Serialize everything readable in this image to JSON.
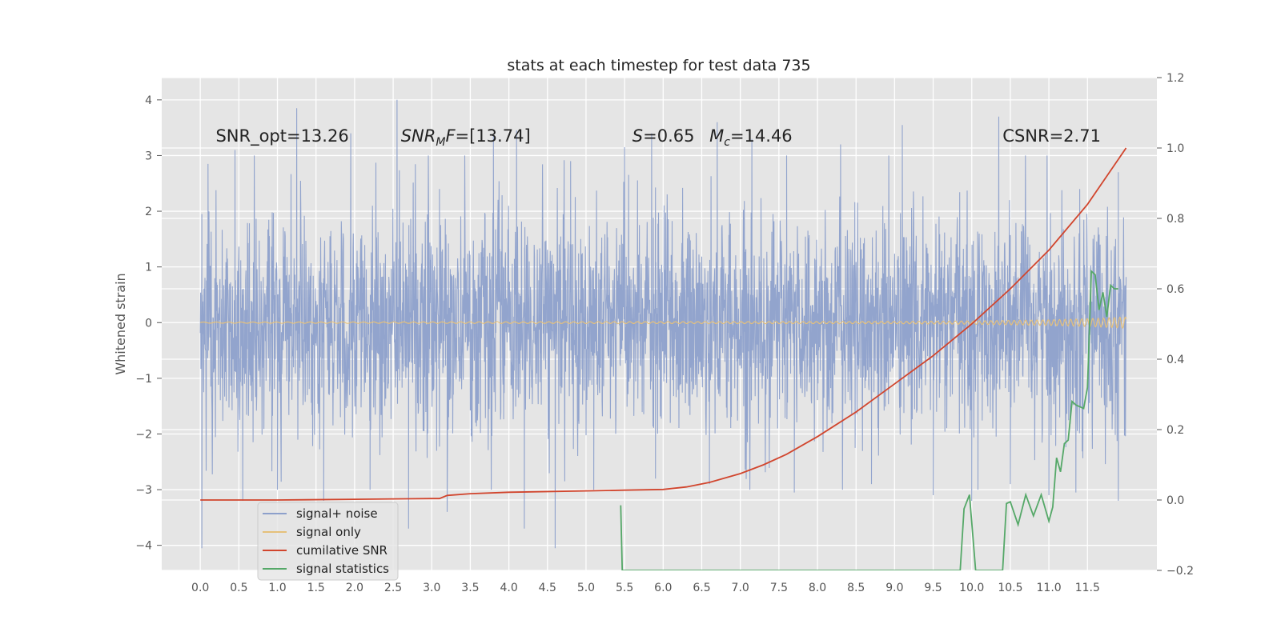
{
  "chart_data": {
    "type": "line",
    "title": "stats at each timestep for test data 735",
    "ylabel": "Whitened strain",
    "xlabel": "",
    "xlim": [
      -0.5,
      12.4
    ],
    "ylim": [
      -4.45,
      4.4
    ],
    "y2lim": [
      -0.2,
      1.2
    ],
    "x_ticks": [
      0.0,
      0.5,
      1.0,
      1.5,
      2.0,
      2.5,
      3.0,
      3.5,
      4.0,
      4.5,
      5.0,
      5.5,
      6.0,
      6.5,
      7.0,
      7.5,
      8.0,
      8.5,
      9.0,
      9.5,
      10.0,
      10.5,
      11.0,
      11.5
    ],
    "x_tick_labels": [
      "0.0",
      "0.5",
      "1.0",
      "1.5",
      "2.0",
      "2.5",
      "3.0",
      "3.5",
      "4.0",
      "4.5",
      "5.0",
      "5.5",
      "6.0",
      "6.5",
      "7.0",
      "7.5",
      "8.0",
      "8.5",
      "9.0",
      "9.5",
      "10.0",
      "10.5",
      "11.0",
      "11.5"
    ],
    "y_ticks": [
      -4,
      -3,
      -2,
      -1,
      0,
      1,
      2,
      3,
      4
    ],
    "y_tick_labels": [
      "−4",
      "−3",
      "−2",
      "−1",
      "0",
      "1",
      "2",
      "3",
      "4"
    ],
    "y2_ticks": [
      -0.2,
      0.0,
      0.2,
      0.4,
      0.6,
      0.8,
      1.0,
      1.2
    ],
    "y2_tick_labels": [
      "−0.2",
      "0.0",
      "0.2",
      "0.4",
      "0.6",
      "0.8",
      "1.0",
      "1.2"
    ],
    "grid": true,
    "legend_position": "bottom-left",
    "annotations": [
      {
        "text": "SNR_opt=13.26",
        "x": 0.2,
        "y": 3.25,
        "style": "plain"
      },
      {
        "text": "SNR_MF=[13.74]",
        "main": "SNR",
        "sub": "M",
        "after": "F=[13.74]",
        "x": 2.6,
        "y": 3.25,
        "style": "math"
      },
      {
        "text": "S=0.65",
        "main": "S",
        "after": "=0.65",
        "x": 5.6,
        "y": 3.25,
        "style": "math"
      },
      {
        "text": "M_c=14.46",
        "main": "M",
        "sub": "c",
        "after": "=14.46",
        "x": 6.6,
        "y": 3.25,
        "style": "math"
      },
      {
        "text": "CSNR=2.71",
        "x": 10.4,
        "y": 3.25,
        "style": "plain"
      }
    ],
    "series": [
      {
        "name": "signal+ noise",
        "axis": "left",
        "color": "#8da0cb",
        "description": "white noise, std ~1, plotted over x 0.0-12.0",
        "x_range": [
          0.0,
          12.0
        ],
        "std": 1.0,
        "peaks_positive": [
          [
            0.02,
            1.95
          ],
          [
            0.1,
            2.85
          ],
          [
            0.45,
            3.1
          ],
          [
            1.25,
            3.85
          ],
          [
            1.95,
            3.4
          ],
          [
            2.55,
            4.0
          ],
          [
            3.1,
            2.4
          ],
          [
            3.8,
            3.35
          ],
          [
            4.1,
            3.45
          ],
          [
            4.8,
            2.9
          ],
          [
            5.5,
            3.15
          ],
          [
            5.85,
            3.4
          ],
          [
            6.7,
            3.6
          ],
          [
            7.15,
            3.3
          ],
          [
            7.6,
            3.0
          ],
          [
            8.3,
            3.2
          ],
          [
            9.1,
            3.55
          ],
          [
            10.35,
            3.7
          ],
          [
            11.4,
            2.4
          ],
          [
            11.9,
            2.7
          ]
        ],
        "peaks_negative": [
          [
            0.02,
            -4.05
          ],
          [
            0.55,
            -3.2
          ],
          [
            1.0,
            -3.0
          ],
          [
            1.6,
            -3.2
          ],
          [
            2.2,
            -3.0
          ],
          [
            2.7,
            -3.7
          ],
          [
            3.2,
            -3.4
          ],
          [
            4.2,
            -3.7
          ],
          [
            4.6,
            -4.05
          ],
          [
            5.1,
            -3.0
          ],
          [
            5.9,
            -2.8
          ],
          [
            6.6,
            -2.9
          ],
          [
            7.7,
            -3.05
          ],
          [
            8.7,
            -2.9
          ],
          [
            9.5,
            -3.1
          ],
          [
            10.0,
            -3.2
          ],
          [
            10.5,
            -2.9
          ],
          [
            11.0,
            -3.1
          ],
          [
            11.35,
            -3.05
          ],
          [
            11.9,
            -3.2
          ]
        ]
      },
      {
        "name": "signal only",
        "axis": "left",
        "color": "#e5c07b",
        "description": "chirp near zero, amplitude grows to ~0.1 by x=12",
        "x": [
          0,
          9.0,
          10.0,
          11.0,
          11.5,
          12.0
        ],
        "amplitude": [
          0.01,
          0.02,
          0.03,
          0.05,
          0.07,
          0.1
        ]
      },
      {
        "name": "cumilative SNR",
        "axis": "right",
        "color": "#d1452d",
        "x": [
          0.0,
          1.0,
          2.0,
          3.0,
          3.1,
          3.2,
          3.5,
          4.0,
          5.0,
          5.5,
          6.0,
          6.3,
          6.6,
          7.0,
          7.3,
          7.6,
          8.0,
          8.5,
          9.0,
          9.5,
          10.0,
          10.5,
          11.0,
          11.5,
          12.0
        ],
        "values": [
          0.0,
          0.0,
          0.002,
          0.004,
          0.004,
          0.013,
          0.018,
          0.022,
          0.026,
          0.028,
          0.03,
          0.037,
          0.05,
          0.075,
          0.1,
          0.13,
          0.18,
          0.25,
          0.33,
          0.41,
          0.5,
          0.6,
          0.71,
          0.84,
          1.0
        ]
      },
      {
        "name": "signal statistics",
        "axis": "right",
        "color": "#55a868",
        "x": [
          5.45,
          5.47,
          9.85,
          9.9,
          9.97,
          10.05,
          10.4,
          10.45,
          10.5,
          10.6,
          10.7,
          10.8,
          10.9,
          11.0,
          11.05,
          11.1,
          11.15,
          11.2,
          11.25,
          11.3,
          11.35,
          11.45,
          11.5,
          11.55,
          11.6,
          11.65,
          11.7,
          11.75,
          11.8,
          11.85,
          11.9
        ],
        "values": [
          -0.015,
          -0.2,
          -0.2,
          -0.025,
          0.015,
          -0.2,
          -0.2,
          -0.01,
          -0.005,
          -0.07,
          0.015,
          -0.045,
          0.015,
          -0.06,
          -0.02,
          0.12,
          0.08,
          0.16,
          0.17,
          0.28,
          0.27,
          0.26,
          0.32,
          0.65,
          0.64,
          0.54,
          0.59,
          0.52,
          0.61,
          0.6,
          0.6
        ]
      }
    ]
  }
}
